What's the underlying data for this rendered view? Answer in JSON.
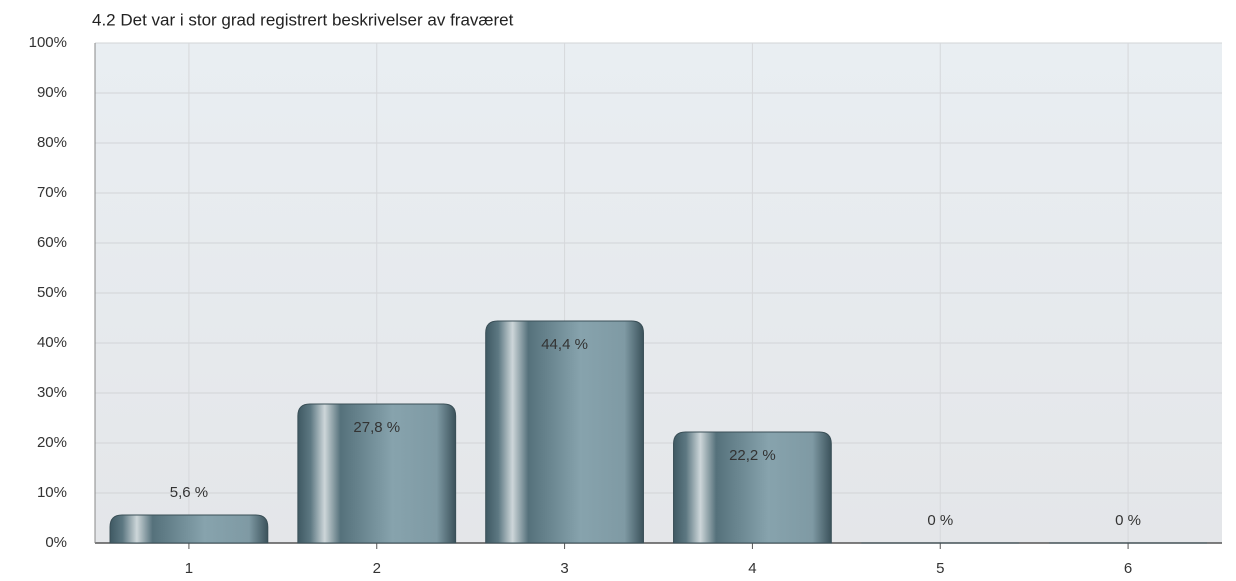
{
  "chart_data": {
    "type": "bar",
    "title": "4.2 Det var i stor grad registrert beskrivelser av fraværet",
    "categories": [
      "1",
      "2",
      "3",
      "4",
      "5",
      "6"
    ],
    "values": [
      5.6,
      27.8,
      44.4,
      22.2,
      0,
      0
    ],
    "value_labels": [
      "5,6 %",
      "27,8 %",
      "44,4 %",
      "22,2 %",
      "0 %",
      "0 %"
    ],
    "color": "#6f8c97",
    "ylim": [
      0,
      100
    ],
    "yticks": [
      {
        "value": 0,
        "label": "0%"
      },
      {
        "value": 10,
        "label": "10%"
      },
      {
        "value": 20,
        "label": "20%"
      },
      {
        "value": 30,
        "label": "30%"
      },
      {
        "value": 40,
        "label": "40%"
      },
      {
        "value": 50,
        "label": "50%"
      },
      {
        "value": 60,
        "label": "60%"
      },
      {
        "value": 70,
        "label": "70%"
      },
      {
        "value": 80,
        "label": "80%"
      },
      {
        "value": 90,
        "label": "90%"
      },
      {
        "value": 100,
        "label": "100%"
      }
    ],
    "grid": true
  }
}
